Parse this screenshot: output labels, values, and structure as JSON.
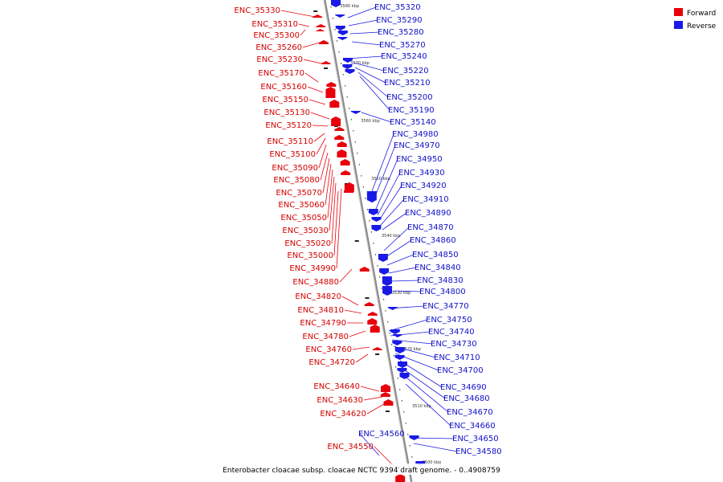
{
  "legend": {
    "forward_label": "Forward",
    "reverse_label": "Reverse",
    "forward_color": "#e8000b",
    "reverse_color": "#1a1ae6"
  },
  "caption": "Enterobacter cloacae subsp. cloacae NCTC 9394 draft genome. - 0..4908759",
  "kbp_ticks": [
    "3580 kbp",
    "3570 kbp",
    "3560 kbp",
    "3550 kbp",
    "3540 kbp",
    "3530 kbp",
    "3520 kbp",
    "3510 kbp",
    "3500 kbp"
  ],
  "forward_labels": [
    "ENC_35330",
    "ENC_35310",
    "ENC_35300",
    "ENC_35260",
    "ENC_35230",
    "ENC_35170",
    "ENC_35160",
    "ENC_35150",
    "ENC_35130",
    "ENC_35120",
    "ENC_35110",
    "ENC_35100",
    "ENC_35090",
    "ENC_35080",
    "ENC_35070",
    "ENC_35060",
    "ENC_35050",
    "ENC_35030",
    "ENC_35020",
    "ENC_35000",
    "ENC_34990",
    "ENC_34880",
    "ENC_34820",
    "ENC_34810",
    "ENC_34790",
    "ENC_34780",
    "ENC_34760",
    "ENC_34720",
    "ENC_34640",
    "ENC_34630",
    "ENC_34620",
    "ENC_34550"
  ],
  "reverse_labels": [
    "ENC_35320",
    "ENC_35290",
    "ENC_35280",
    "ENC_35270",
    "ENC_35240",
    "ENC_35220",
    "ENC_35210",
    "ENC_35200",
    "ENC_35190",
    "ENC_35140",
    "ENC_34980",
    "ENC_34970",
    "ENC_34950",
    "ENC_34930",
    "ENC_34920",
    "ENC_34910",
    "ENC_34890",
    "ENC_34870",
    "ENC_34860",
    "ENC_34850",
    "ENC_34840",
    "ENC_34830",
    "ENC_34800",
    "ENC_34770",
    "ENC_34750",
    "ENC_34740",
    "ENC_34730",
    "ENC_34710",
    "ENC_34700",
    "ENC_34690",
    "ENC_34680",
    "ENC_34670",
    "ENC_34660",
    "ENC_34650",
    "ENC_34580",
    "ENC_34560"
  ]
}
